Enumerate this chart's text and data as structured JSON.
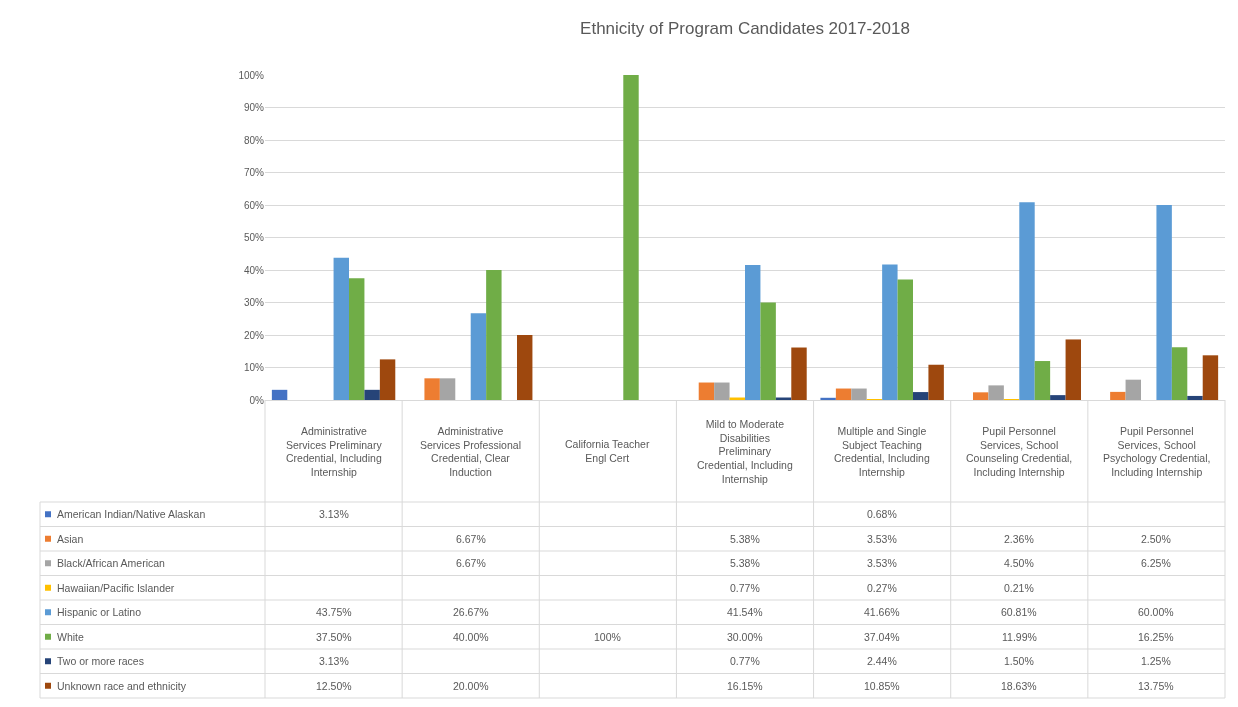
{
  "chart_data": {
    "type": "bar",
    "title": "Ethnicity of Program Candidates 2017-2018",
    "categories": [
      "Administrative Services Preliminary Credential, Including Internship",
      "Administrative Services Professional Credential, Clear Induction",
      "California Teacher Engl Cert",
      "Mild to Moderate Disabilities Preliminary Credential, Including Internship",
      "Multiple and Single Subject Teaching Credential, Including Internship",
      "Pupil Personnel Services, School Counseling Credential, Including Internship",
      "Pupil Personnel Services, School Psychology Credential, Including Internship"
    ],
    "series": [
      {
        "name": "American Indian/Native Alaskan",
        "color": "#4472c4",
        "values": [
          3.13,
          null,
          null,
          null,
          0.68,
          null,
          null
        ],
        "value_labels": [
          "3.13%",
          null,
          null,
          null,
          "0.68%",
          null,
          null
        ]
      },
      {
        "name": "Asian",
        "color": "#ed7d31",
        "values": [
          null,
          6.67,
          null,
          5.38,
          3.53,
          2.36,
          2.5
        ],
        "value_labels": [
          null,
          "6.67%",
          null,
          "5.38%",
          "3.53%",
          "2.36%",
          "2.50%"
        ]
      },
      {
        "name": "Black/African American",
        "color": "#a5a5a5",
        "values": [
          null,
          6.67,
          null,
          5.38,
          3.53,
          4.5,
          6.25
        ],
        "value_labels": [
          null,
          "6.67%",
          null,
          "5.38%",
          "3.53%",
          "4.50%",
          "6.25%"
        ]
      },
      {
        "name": "Hawaiian/Pacific Islander",
        "color": "#ffc000",
        "values": [
          null,
          null,
          null,
          0.77,
          0.27,
          0.21,
          null
        ],
        "value_labels": [
          null,
          null,
          null,
          "0.77%",
          "0.27%",
          "0.21%",
          null
        ]
      },
      {
        "name": "Hispanic or Latino",
        "color": "#5b9bd5",
        "values": [
          43.75,
          26.67,
          null,
          41.54,
          41.66,
          60.81,
          60.0
        ],
        "value_labels": [
          "43.75%",
          "26.67%",
          null,
          "41.54%",
          "41.66%",
          "60.81%",
          "60.00%"
        ]
      },
      {
        "name": "White",
        "color": "#70ad47",
        "values": [
          37.5,
          40.0,
          100,
          30.0,
          37.04,
          11.99,
          16.25
        ],
        "value_labels": [
          "37.50%",
          "40.00%",
          "100%",
          "30.00%",
          "37.04%",
          "11.99%",
          "16.25%"
        ]
      },
      {
        "name": "Two or more races",
        "color": "#264478",
        "values": [
          3.13,
          null,
          null,
          0.77,
          2.44,
          1.5,
          1.25
        ],
        "value_labels": [
          "3.13%",
          null,
          null,
          "0.77%",
          "2.44%",
          "1.50%",
          "1.25%"
        ]
      },
      {
        "name": "Unknown race and ethnicity",
        "color": "#9e480e",
        "values": [
          12.5,
          20.0,
          null,
          16.15,
          10.85,
          18.63,
          13.75
        ],
        "value_labels": [
          "12.50%",
          "20.00%",
          null,
          "16.15%",
          "10.85%",
          "18.63%",
          "13.75%"
        ]
      }
    ],
    "ylim": [
      0,
      100
    ],
    "yticks": [
      {
        "value": 0,
        "label": "0%"
      },
      {
        "value": 10,
        "label": "10%"
      },
      {
        "value": 20,
        "label": "20%"
      },
      {
        "value": 30,
        "label": "30%"
      },
      {
        "value": 40,
        "label": "40%"
      },
      {
        "value": 50,
        "label": "50%"
      },
      {
        "value": 60,
        "label": "60%"
      },
      {
        "value": 70,
        "label": "70%"
      },
      {
        "value": 80,
        "label": "80%"
      },
      {
        "value": 90,
        "label": "90%"
      },
      {
        "value": 100,
        "label": "100%"
      }
    ],
    "grid": "y",
    "legend": "bottom left"
  }
}
